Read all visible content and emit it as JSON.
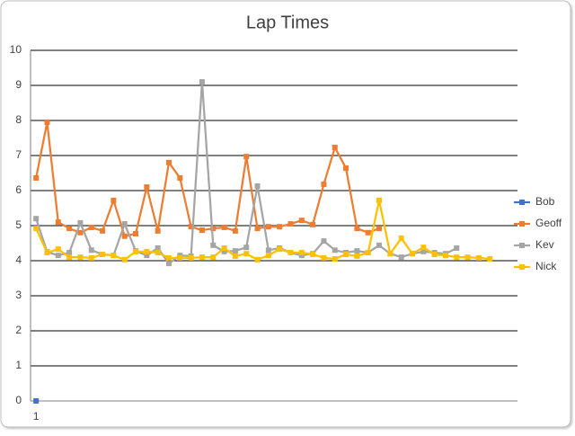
{
  "chart_data": {
    "type": "line",
    "title": "Lap Times",
    "categories": [
      "1",
      null,
      null,
      null,
      null,
      null,
      null,
      null,
      null,
      null,
      null,
      null,
      null,
      null,
      null,
      null,
      null,
      null,
      null,
      null,
      null,
      null,
      null,
      null,
      null,
      null,
      null,
      null,
      null,
      null,
      null,
      null,
      null,
      null,
      null,
      null,
      null,
      null,
      null,
      null,
      null,
      null,
      null,
      null
    ],
    "series": [
      {
        "name": "Bob",
        "color": "#4472c4",
        "values": [
          0,
          null,
          null,
          null,
          null,
          null,
          null,
          null,
          null,
          null,
          null,
          null,
          null,
          null,
          null,
          null,
          null,
          null,
          null,
          null,
          null,
          null,
          null,
          null,
          null,
          null,
          null,
          null,
          null,
          null,
          null,
          null,
          null,
          null,
          null,
          null,
          null,
          null,
          null,
          null,
          null,
          null,
          null,
          null
        ]
      },
      {
        "name": "Geoff",
        "color": "#ed7d31",
        "values": [
          6.36,
          7.95,
          5.1,
          4.92,
          4.8,
          4.95,
          4.85,
          5.72,
          4.7,
          4.77,
          6.1,
          4.85,
          6.8,
          6.36,
          4.97,
          4.87,
          4.92,
          4.95,
          4.85,
          6.97,
          4.92,
          4.97,
          4.97,
          5.05,
          5.15,
          5.03,
          6.18,
          7.23,
          6.64,
          4.92,
          4.8,
          4.92,
          null,
          null,
          null,
          null,
          null,
          null,
          null,
          null,
          null,
          null,
          null,
          null
        ]
      },
      {
        "name": "Kev",
        "color": "#a5a5a5",
        "values": [
          5.2,
          4.25,
          4.15,
          4.23,
          5.08,
          4.3,
          4.18,
          4.15,
          5.05,
          4.28,
          4.15,
          4.36,
          3.92,
          4.15,
          4.13,
          9.1,
          4.44,
          4.26,
          4.28,
          4.38,
          6.13,
          4.3,
          4.36,
          4.23,
          4.15,
          4.2,
          4.56,
          4.3,
          4.23,
          4.28,
          4.23,
          4.44,
          4.2,
          4.1,
          4.2,
          4.26,
          4.23,
          4.2,
          4.36,
          null,
          null,
          null,
          null,
          null
        ]
      },
      {
        "name": "Nick",
        "color": "#ffc000",
        "values": [
          4.92,
          4.23,
          4.33,
          4.1,
          4.1,
          4.08,
          4.18,
          4.15,
          4.03,
          4.26,
          4.26,
          4.23,
          4.08,
          4.08,
          4.08,
          4.1,
          4.1,
          4.36,
          4.13,
          4.2,
          4.03,
          4.15,
          4.33,
          4.23,
          4.23,
          4.18,
          4.08,
          4.05,
          4.18,
          4.13,
          4.23,
          5.72,
          4.2,
          4.64,
          4.2,
          4.38,
          4.18,
          4.15,
          4.1,
          4.1,
          4.08,
          4.05,
          null,
          null
        ]
      }
    ],
    "ylim": [
      0,
      10
    ],
    "yticks": [
      0,
      1,
      2,
      3,
      4,
      5,
      6,
      7,
      8,
      9,
      10
    ],
    "grid": true,
    "legend": "right"
  }
}
